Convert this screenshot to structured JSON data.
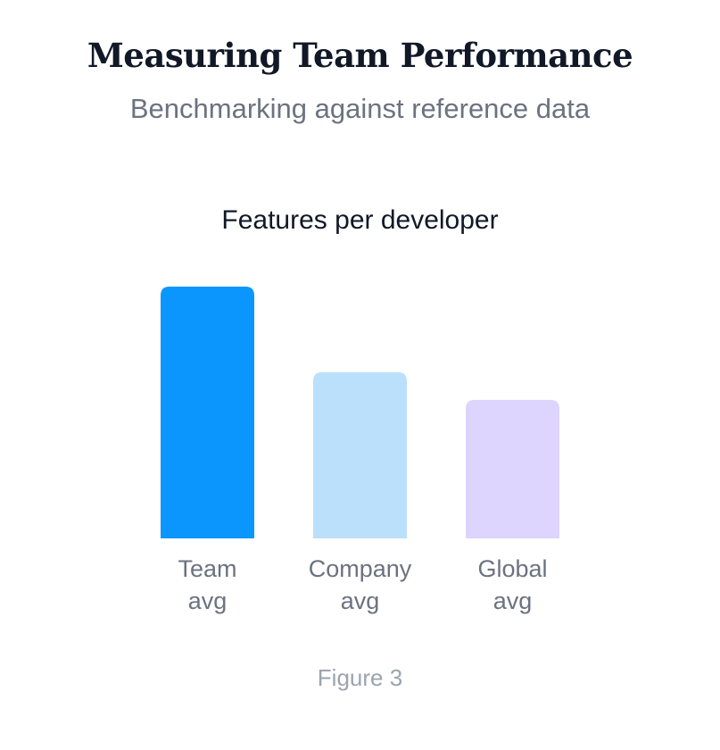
{
  "header": {
    "title": "Measuring Team Performance",
    "subtitle": "Benchmarking against reference data"
  },
  "chart_data": {
    "type": "bar",
    "title": "Features per developer",
    "categories": [
      [
        "Team",
        "avg"
      ],
      [
        "Company",
        "avg"
      ],
      [
        "Global",
        "avg"
      ]
    ],
    "values": [
      100,
      66,
      55
    ],
    "colors": [
      "#0a96fc",
      "#bae0fb",
      "#ddd5fd"
    ],
    "ylim": [
      0,
      100
    ],
    "grid": false,
    "axes_visible": false
  },
  "caption": "Figure 3"
}
